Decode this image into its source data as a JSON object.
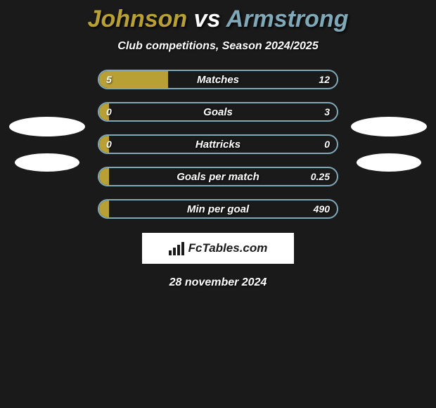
{
  "title": {
    "left": "Johnson",
    "vs": "vs",
    "right": "Armstrong",
    "fontsize": 34,
    "left_color": "#b8a035",
    "right_color": "#7fa8b8",
    "vs_color": "#ffffff"
  },
  "subtitle": {
    "text": "Club competitions, Season 2024/2025",
    "fontsize": 16
  },
  "side_avatars": {
    "left_color": "#ffffff",
    "right_color": "#ffffff"
  },
  "chart": {
    "type": "comparison-bars",
    "left_fill_color": "#b8a035",
    "border_color": "#7fa8b8",
    "background_color": "transparent",
    "label_fontsize": 15,
    "value_fontsize": 14,
    "bars": [
      {
        "label": "Matches",
        "left": "5",
        "right": "12",
        "fill_pct": 29
      },
      {
        "label": "Goals",
        "left": "0",
        "right": "3",
        "fill_pct": 4
      },
      {
        "label": "Hattricks",
        "left": "0",
        "right": "0",
        "fill_pct": 4
      },
      {
        "label": "Goals per match",
        "left": "",
        "right": "0.25",
        "fill_pct": 4
      },
      {
        "label": "Min per goal",
        "left": "",
        "right": "490",
        "fill_pct": 4
      }
    ]
  },
  "logo": {
    "text": "FcTables.com",
    "fontsize": 17,
    "icon_color": "#1a1a1a"
  },
  "date": {
    "text": "28 november 2024",
    "fontsize": 16
  }
}
